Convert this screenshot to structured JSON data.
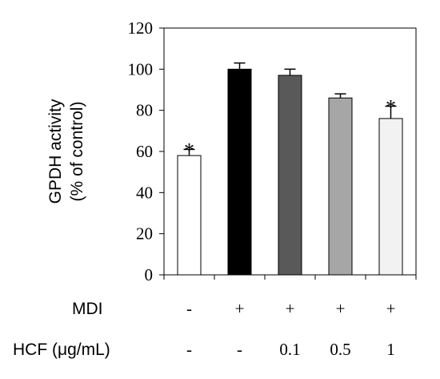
{
  "chart_data": {
    "type": "bar",
    "ylabel_line1": "GPDH activity",
    "ylabel_line2": "(% of control)",
    "ylim": [
      0,
      120
    ],
    "yticks": [
      0,
      20,
      40,
      60,
      80,
      100,
      120
    ],
    "grid": false,
    "bars": [
      {
        "value": 58,
        "error": 3,
        "color": "#ffffff",
        "annotation": "*"
      },
      {
        "value": 100,
        "error": 3,
        "color": "#000000",
        "annotation": ""
      },
      {
        "value": 97,
        "error": 3,
        "color": "#595959",
        "annotation": ""
      },
      {
        "value": 86,
        "error": 2,
        "color": "#a6a6a6",
        "annotation": ""
      },
      {
        "value": 76,
        "error": 6,
        "color": "#f2f2f2",
        "annotation": "*"
      }
    ],
    "conditions": [
      {
        "label": "MDI",
        "values": [
          "-",
          "+",
          "+",
          "+",
          "+"
        ]
      },
      {
        "label": "HCF (μg/mL)",
        "values": [
          "-",
          "-",
          "0.1",
          "0.5",
          "1"
        ]
      }
    ]
  }
}
